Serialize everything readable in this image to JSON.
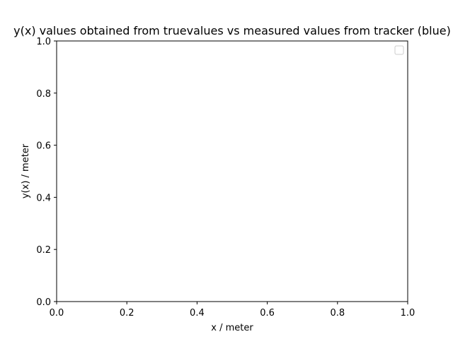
{
  "chart_data": {
    "type": "line",
    "title": "y(x) values obtained from truevalues vs measured values from tracker (blue)",
    "xlabel": "x / meter",
    "ylabel": "y(x) / meter",
    "xlim": [
      0.0,
      1.0
    ],
    "ylim": [
      0.0,
      1.0
    ],
    "x_ticks": [
      "0.0",
      "0.2",
      "0.4",
      "0.6",
      "0.8",
      "1.0"
    ],
    "y_ticks": [
      "0.0",
      "0.2",
      "0.4",
      "0.6",
      "0.8",
      "1.0"
    ],
    "grid": false,
    "legend": {
      "placement": "top-right",
      "entries": []
    },
    "series": []
  }
}
